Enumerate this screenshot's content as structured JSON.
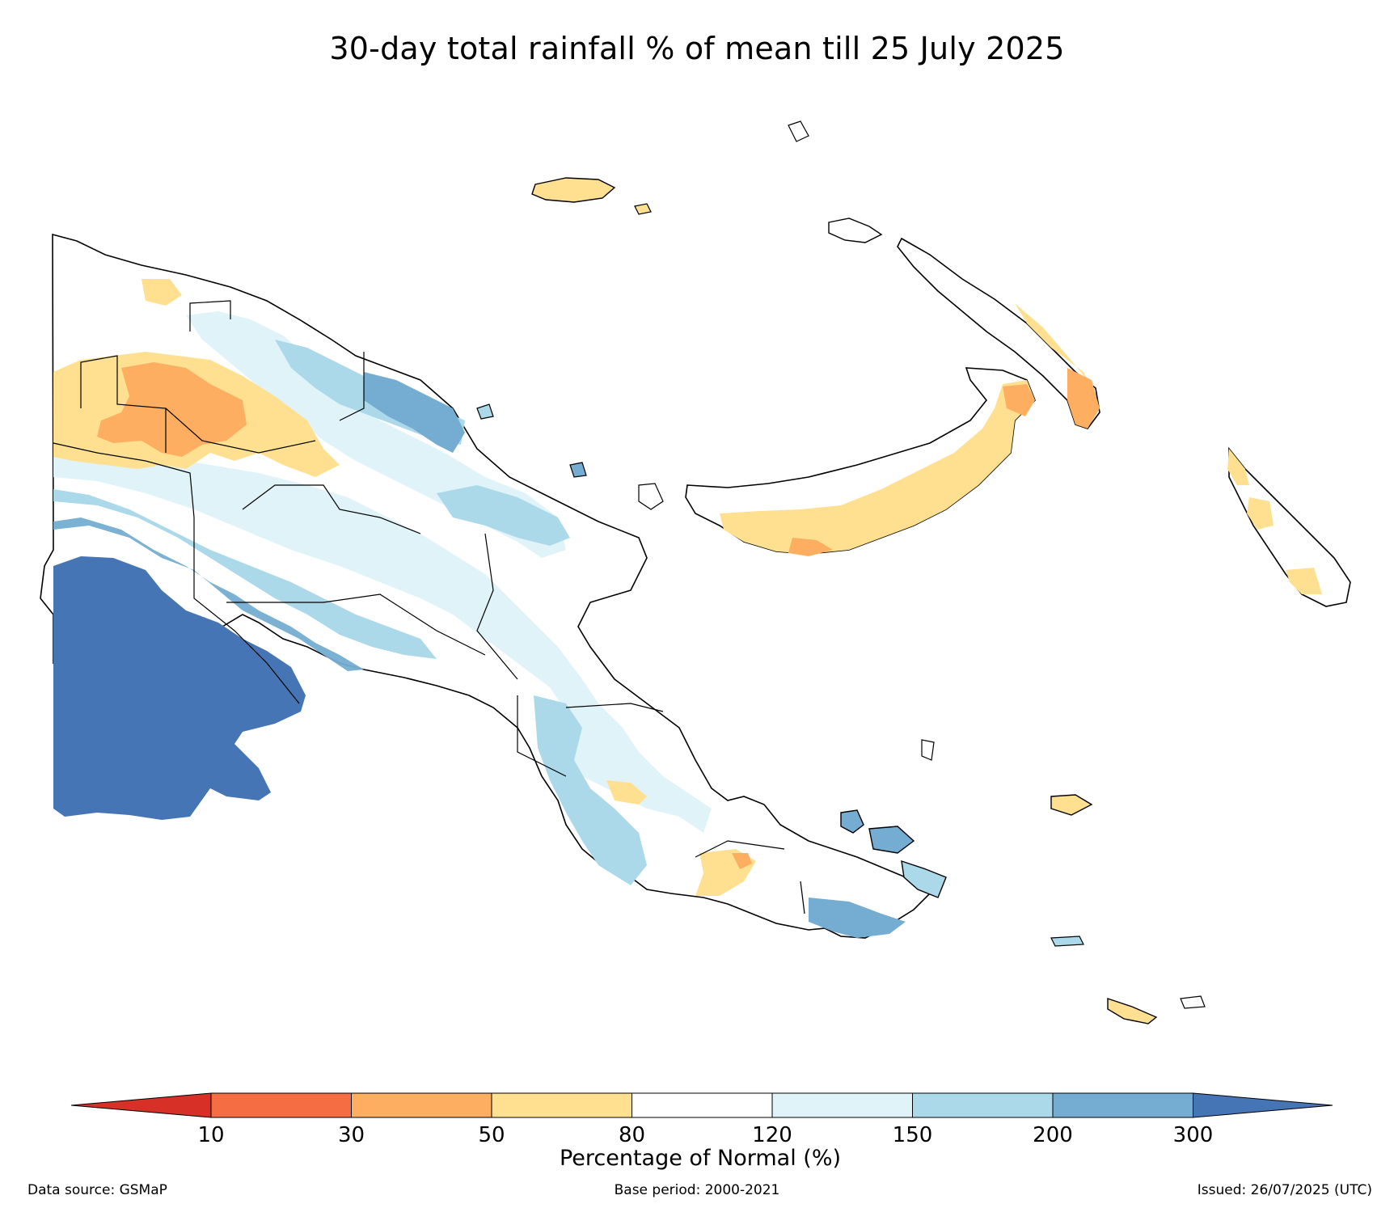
{
  "title": "30-day total rainfall % of mean till 25 July 2025",
  "colorbar": {
    "title": "Percentage of Normal (%)",
    "ticks": [
      "10",
      "30",
      "50",
      "80",
      "120",
      "150",
      "200",
      "300"
    ],
    "bins": [
      {
        "range": "<10",
        "color": "#d73027"
      },
      {
        "range": "10-30",
        "color": "#f46d43"
      },
      {
        "range": "30-50",
        "color": "#fdae61"
      },
      {
        "range": "50-80",
        "color": "#fee090"
      },
      {
        "range": "80-120",
        "color": "#ffffff"
      },
      {
        "range": "120-150",
        "color": "#e0f3f8"
      },
      {
        "range": "150-200",
        "color": "#abd9e9"
      },
      {
        "range": "200-300",
        "color": "#74add1"
      },
      {
        "range": ">300",
        "color": "#4575b4"
      }
    ]
  },
  "footer": {
    "source": "Data source: GSMaP",
    "base_period": "Base period: 2000-2021",
    "issued": "Issued: 26/07/2025 (UTC)"
  }
}
